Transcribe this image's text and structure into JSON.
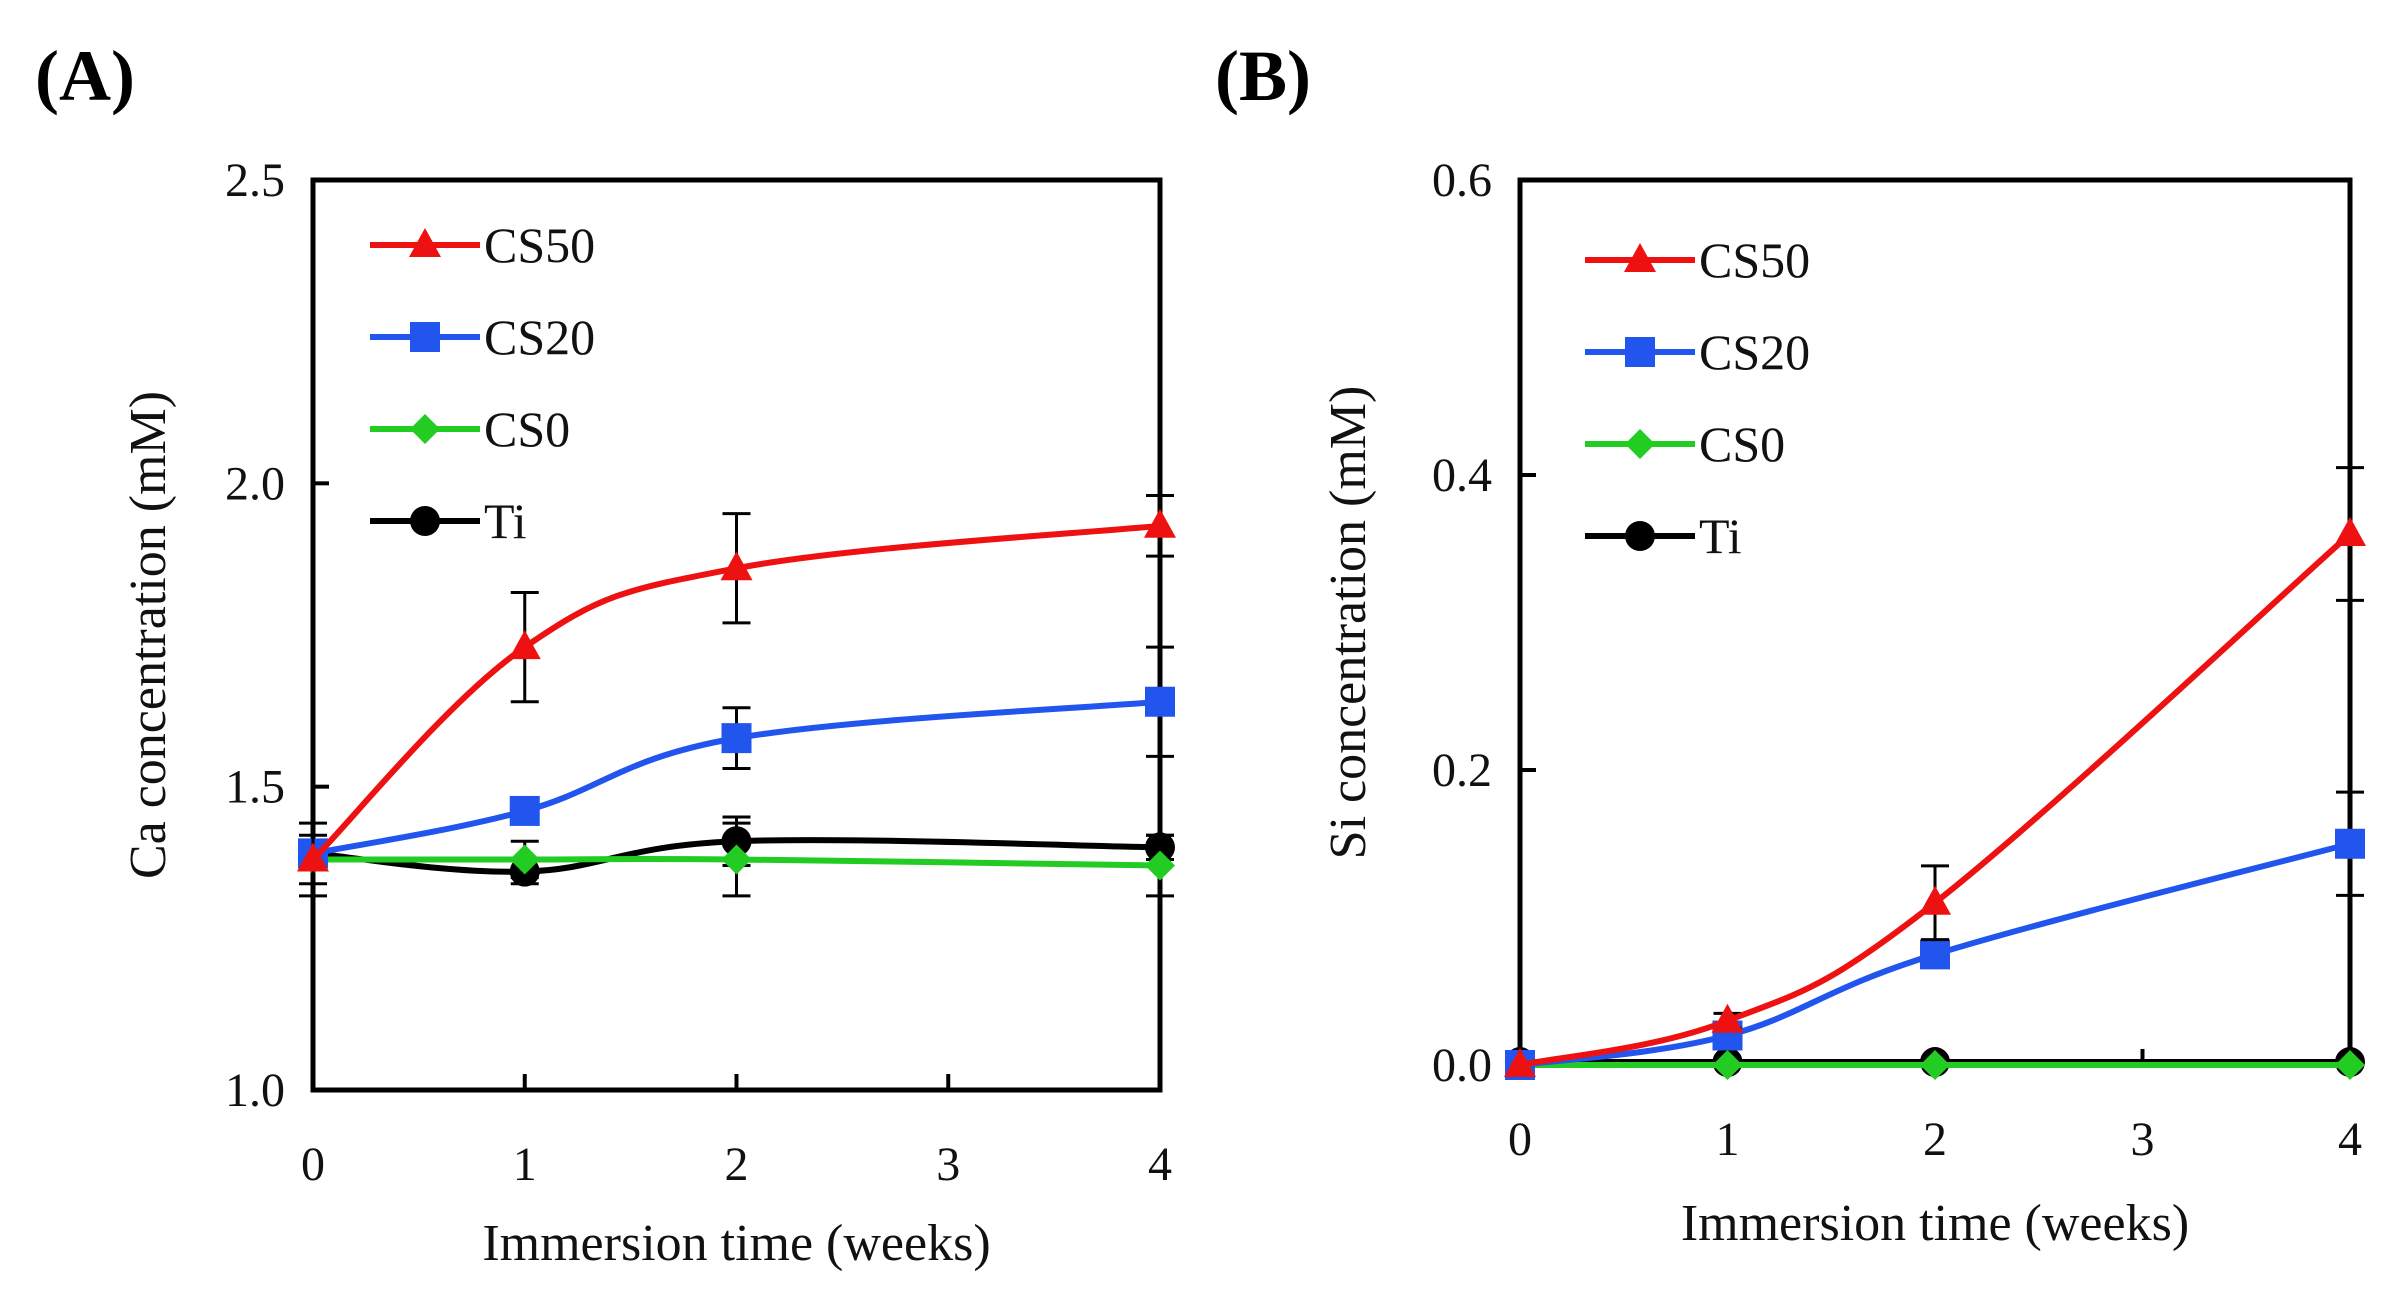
{
  "figure": {
    "panel_labels": [
      "(A)",
      "(B)"
    ]
  },
  "chart_data": [
    {
      "type": "line",
      "panel": "(A)",
      "title": "",
      "xlabel": "Immersion time (weeks)",
      "ylabel": "Ca concentration (mM)",
      "xlim": [
        0,
        4
      ],
      "ylim": [
        1.0,
        2.5
      ],
      "xticks": [
        0,
        1,
        2,
        3,
        4
      ],
      "yticks": [
        "1.0",
        "1.5",
        "2.0",
        "2.5"
      ],
      "legend_position": "top-left",
      "grid": false,
      "series": [
        {
          "name": "CS50",
          "color": "#ee1111",
          "marker": "triangle",
          "x": [
            0,
            1,
            2,
            4
          ],
          "values": [
            1.38,
            1.73,
            1.86,
            1.93
          ],
          "errors": [
            0.04,
            0.09,
            0.09,
            0.05
          ]
        },
        {
          "name": "CS20",
          "color": "#2255ee",
          "marker": "square",
          "x": [
            0,
            1,
            2,
            4
          ],
          "values": [
            1.39,
            1.46,
            1.58,
            1.64
          ],
          "errors": [
            0.02,
            0.02,
            0.05,
            0.09
          ]
        },
        {
          "name": "CS0",
          "color": "#22cc22",
          "marker": "diamond",
          "x": [
            0,
            1,
            2,
            4
          ],
          "values": [
            1.38,
            1.38,
            1.38,
            1.37
          ],
          "errors": [
            0.06,
            0.03,
            0.06,
            0.05
          ]
        },
        {
          "name": "Ti",
          "color": "#000000",
          "marker": "circle",
          "x": [
            0,
            1,
            2,
            4
          ],
          "values": [
            1.39,
            1.36,
            1.41,
            1.4
          ],
          "errors": [
            0.02,
            0.02,
            0.04,
            0.02
          ]
        }
      ]
    },
    {
      "type": "line",
      "panel": "(B)",
      "title": "",
      "xlabel": "Immersion time (weeks)",
      "ylabel": "Si concentration (mM)",
      "xlim": [
        0,
        4
      ],
      "ylim": [
        0.0,
        0.6
      ],
      "xticks": [
        0,
        1,
        2,
        3,
        4
      ],
      "yticks": [
        "0.0",
        "0.2",
        "0.4",
        "0.6"
      ],
      "legend_position": "top-left",
      "grid": false,
      "series": [
        {
          "name": "CS50",
          "color": "#ee1111",
          "marker": "triangle",
          "x": [
            0,
            1,
            2,
            4
          ],
          "values": [
            0.0,
            0.03,
            0.11,
            0.36
          ],
          "errors": [
            0.0,
            0.005,
            0.025,
            0.045
          ]
        },
        {
          "name": "CS20",
          "color": "#2255ee",
          "marker": "square",
          "x": [
            0,
            1,
            2,
            4
          ],
          "values": [
            0.0,
            0.02,
            0.075,
            0.15
          ],
          "errors": [
            0.0,
            0.004,
            0.006,
            0.035
          ]
        },
        {
          "name": "CS0",
          "color": "#22cc22",
          "marker": "diamond",
          "x": [
            0,
            1,
            2,
            4
          ],
          "values": [
            0.0,
            0.0,
            0.0,
            0.0
          ],
          "errors": [
            0,
            0,
            0,
            0
          ]
        },
        {
          "name": "Ti",
          "color": "#000000",
          "marker": "circle",
          "x": [
            0,
            1,
            2,
            4
          ],
          "values": [
            0.002,
            0.002,
            0.002,
            0.002
          ],
          "errors": [
            0,
            0,
            0,
            0
          ]
        }
      ]
    }
  ]
}
